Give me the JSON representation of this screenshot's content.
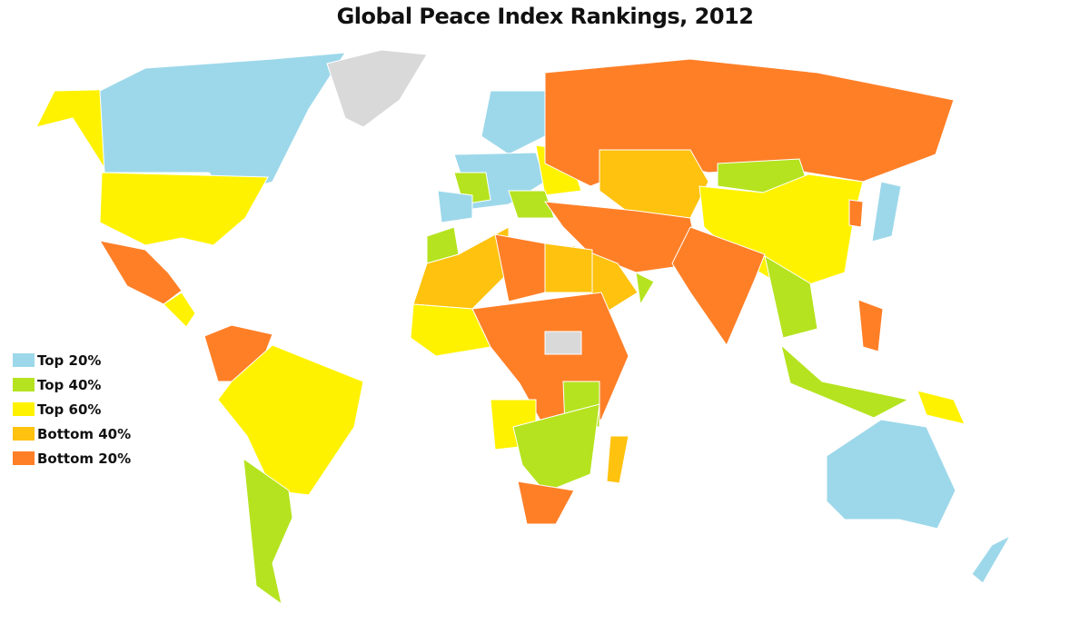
{
  "title": "Global Peace Index Rankings, 2012",
  "legend": [
    {
      "label": "Top 20%",
      "color": "#9dd8ea"
    },
    {
      "label": "Top 40%",
      "color": "#b5e31f"
    },
    {
      "label": "Top 60%",
      "color": "#fff200"
    },
    {
      "label": "Bottom 40%",
      "color": "#ffc20e"
    },
    {
      "label": "Bottom 20%",
      "color": "#ff7f27"
    }
  ],
  "no_data_color": "#d9d9d9"
}
